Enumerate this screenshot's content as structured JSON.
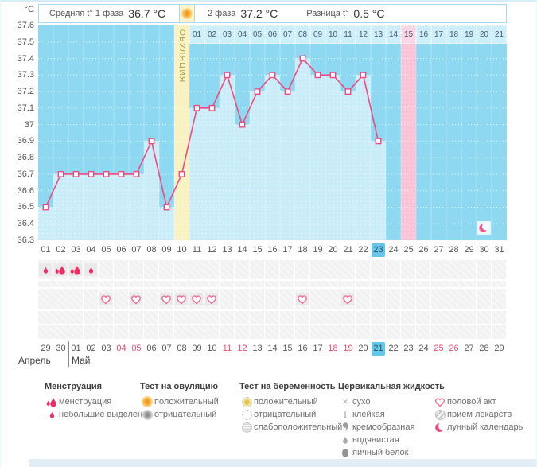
{
  "header": {
    "unit": "°C",
    "phase1_label": "Средняя t° 1 фаза",
    "phase1_value": "36.7 °C",
    "ovulation_test_icon": "positive-ovulation-test",
    "phase2_label": "2 фаза",
    "phase2_value": "37.2 °C",
    "diff_label": "Разница t°",
    "diff_value": "0.5 °C"
  },
  "colors": {
    "line": "#ef4a80",
    "chart_bg": "#8fd8f1",
    "under_fill": "#c9ecf9",
    "ovulation_band": "#f8f1c1",
    "period_band": "#f9c3d5",
    "today_highlight": "#63c7e9",
    "weekend_red": "#ef4a6e"
  },
  "chart_data": {
    "type": "line",
    "title": "График базальной температуры",
    "ylabel": "°C",
    "ylim": [
      36.3,
      37.6
    ],
    "ytick_step": 0.1,
    "yticks": [
      "37.6",
      "37.5",
      "37.4",
      "37.3",
      "37.2",
      "37.1",
      "37",
      "36.9",
      "36.8",
      "36.7",
      "36.6",
      "36.5",
      "36.4",
      "36.3"
    ],
    "cycle_days": [
      "01",
      "02",
      "03",
      "04",
      "05",
      "06",
      "07",
      "08",
      "09",
      "10",
      "11",
      "12",
      "13",
      "14",
      "15",
      "16",
      "17",
      "18",
      "19",
      "20",
      "21",
      "22",
      "23",
      "24",
      "25",
      "26",
      "27",
      "28",
      "29",
      "30",
      "31"
    ],
    "series": [
      {
        "name": "Базальная температура",
        "values": [
          36.5,
          36.7,
          36.7,
          36.7,
          36.7,
          36.7,
          36.7,
          36.9,
          36.5,
          36.7,
          37.1,
          37.1,
          37.3,
          37.0,
          37.2,
          37.3,
          37.2,
          37.4,
          37.3,
          37.3,
          37.2,
          37.3,
          36.9,
          null,
          null,
          null,
          null,
          null,
          null,
          null,
          null
        ]
      }
    ],
    "ovulation_day": 10,
    "ovulation_label": "ОВУЛЯЦИЯ",
    "dpo_labels": [
      "01",
      "02",
      "03",
      "04",
      "05",
      "06",
      "07",
      "08",
      "09",
      "10",
      "11",
      "12",
      "13",
      "14",
      "15",
      "16",
      "17",
      "18",
      "19",
      "20",
      "21"
    ],
    "expected_period_day": 25,
    "expected_period_dpo": "15",
    "current_cycle_day": 23,
    "moon_calendar_day": 30,
    "grid": true,
    "legend_position": "bottom"
  },
  "symbol_rows": [
    {
      "name": "menstruation",
      "entries": [
        {
          "day": 1,
          "icon": "drop-small"
        },
        {
          "day": 2,
          "icon": "drop-large"
        },
        {
          "day": 3,
          "icon": "drop-large"
        },
        {
          "day": 4,
          "icon": "drop-small"
        }
      ]
    },
    {
      "name": "spacer-1",
      "entries": []
    },
    {
      "name": "intercourse",
      "entries": [
        {
          "day": 5,
          "icon": "heart"
        },
        {
          "day": 7,
          "icon": "heart"
        },
        {
          "day": 9,
          "icon": "heart"
        },
        {
          "day": 10,
          "icon": "heart"
        },
        {
          "day": 11,
          "icon": "heart"
        },
        {
          "day": 12,
          "icon": "heart"
        },
        {
          "day": 18,
          "icon": "heart"
        },
        {
          "day": 21,
          "icon": "heart"
        }
      ]
    },
    {
      "name": "spacer-2",
      "entries": []
    },
    {
      "name": "spacer-3",
      "entries": []
    }
  ],
  "calendar": {
    "dates": [
      "29",
      "30",
      "01",
      "02",
      "03",
      "04",
      "05",
      "06",
      "07",
      "08",
      "09",
      "10",
      "11",
      "12",
      "13",
      "14",
      "15",
      "16",
      "17",
      "18",
      "19",
      "20",
      "21",
      "22",
      "23",
      "24",
      "25",
      "26",
      "27",
      "28",
      "29"
    ],
    "red_indices": [
      5,
      6,
      12,
      13,
      19,
      20,
      26,
      27
    ],
    "today_index": 22,
    "month_april": "Апрель",
    "month_may": "Май"
  },
  "legend": {
    "groups": [
      {
        "title": "Менструация",
        "items": [
          {
            "icon": "drop-large",
            "label": "менструация"
          },
          {
            "icon": "drop-small",
            "label": "небольшие выделения"
          }
        ]
      },
      {
        "title": "Тест на овуляцию",
        "items": [
          {
            "icon": "ovu-positive",
            "label": "положительный"
          },
          {
            "icon": "ovu-negative",
            "label": "отрицательный"
          }
        ]
      },
      {
        "title": "Тест на беременность",
        "items": [
          {
            "icon": "preg-positive",
            "label": "положительный"
          },
          {
            "icon": "preg-negative",
            "label": "отрицательный"
          },
          {
            "icon": "preg-weak",
            "label": "слабоположительный"
          }
        ]
      },
      {
        "title": "Цервикальная жидкость",
        "items": [
          {
            "icon": "dry",
            "label": "сухо"
          },
          {
            "icon": "sticky",
            "label": "клейкая"
          },
          {
            "icon": "creamy",
            "label": "кремообразная"
          },
          {
            "icon": "watery",
            "label": "водянистая"
          },
          {
            "icon": "eggwhite",
            "label": "яичный белок"
          }
        ]
      },
      {
        "title": "",
        "items": [
          {
            "icon": "heart",
            "label": "половой акт"
          },
          {
            "icon": "pill",
            "label": "прием лекарств"
          },
          {
            "icon": "moon",
            "label": "лунный календарь"
          }
        ]
      }
    ]
  }
}
